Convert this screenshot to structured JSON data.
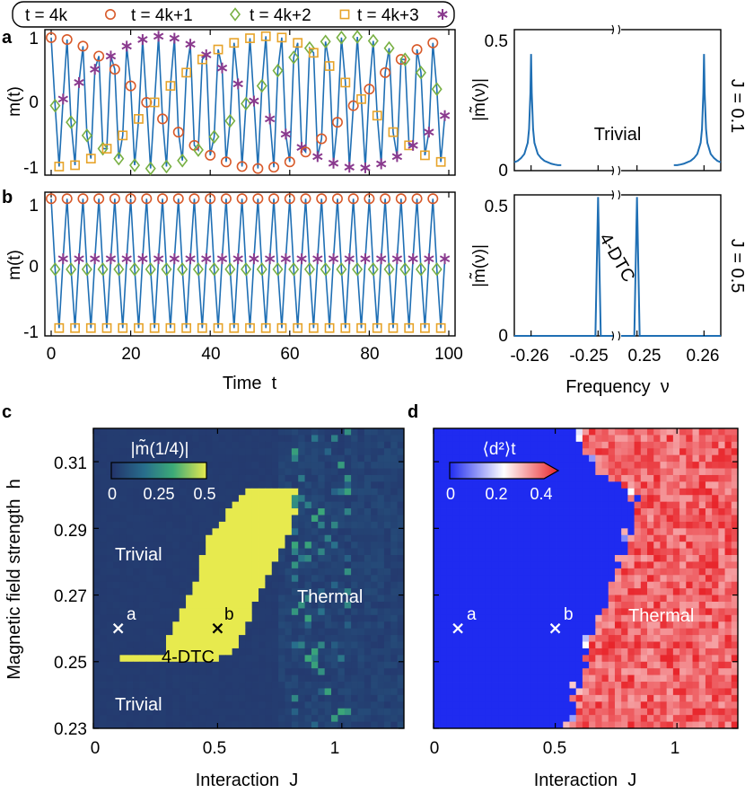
{
  "panel_letters": [
    "a",
    "b",
    "c",
    "d"
  ],
  "colors": {
    "line": "#1f6fb4",
    "circle": "#d85a2a",
    "diamond": "#78b043",
    "square": "#e7a42a",
    "star": "#8a3a8e",
    "phase_bg": "#23336b",
    "phase_hi": "#e7ea4e",
    "d2_low": "#1f2bf0",
    "d2_high": "#e8242a"
  },
  "chart_data": [
    {
      "id": "a-time",
      "type": "line",
      "xlabel": "",
      "ylabel": "m(t)",
      "xlim": [
        0,
        100
      ],
      "ylim": [
        -1.1,
        1.1
      ],
      "xticks": [
        "0",
        "20",
        "40",
        "60",
        "80",
        "100"
      ],
      "yticks": [
        "1",
        "0",
        "-1"
      ],
      "legend": [
        "t = 4k",
        "t = 4k+1",
        "t = 4k+2",
        "t = 4k+3"
      ],
      "series": [
        {
          "name": "t = 4k",
          "x": [
            0,
            4,
            8,
            12,
            16,
            20,
            24,
            28,
            32,
            36,
            40,
            44,
            48,
            52,
            56,
            60,
            64,
            68,
            72,
            76,
            80,
            84,
            88,
            92,
            96
          ],
          "values": [
            0.98,
            0.95,
            0.85,
            0.7,
            0.5,
            0.25,
            0.0,
            -0.25,
            -0.45,
            -0.65,
            -0.8,
            -0.9,
            -0.97,
            -1.0,
            -0.98,
            -0.9,
            -0.75,
            -0.55,
            -0.3,
            -0.05,
            0.2,
            0.45,
            0.65,
            0.8,
            0.9
          ]
        },
        {
          "name": "t = 4k+1",
          "x": [
            1,
            5,
            9,
            13,
            17,
            21,
            25,
            29,
            33,
            37,
            41,
            45,
            49,
            53,
            57,
            61,
            65,
            69,
            73,
            77,
            81,
            85,
            89,
            93,
            97
          ],
          "values": [
            -0.05,
            -0.3,
            -0.5,
            -0.7,
            -0.85,
            -0.95,
            -1.0,
            -0.97,
            -0.88,
            -0.72,
            -0.52,
            -0.28,
            -0.02,
            0.25,
            0.48,
            0.68,
            0.82,
            0.92,
            0.98,
            0.99,
            0.93,
            0.82,
            0.65,
            0.45,
            0.2
          ]
        },
        {
          "name": "t = 4k+2",
          "x": [
            2,
            6,
            10,
            14,
            18,
            22,
            26,
            30,
            34,
            38,
            42,
            46,
            50,
            54,
            58,
            62,
            66,
            70,
            74,
            78,
            82,
            86,
            90,
            94,
            98
          ],
          "values": [
            -0.97,
            -0.95,
            -0.85,
            -0.7,
            -0.5,
            -0.25,
            0.0,
            0.25,
            0.45,
            0.65,
            0.8,
            0.9,
            0.97,
            1.0,
            0.98,
            0.9,
            0.75,
            0.55,
            0.3,
            0.05,
            -0.2,
            -0.45,
            -0.65,
            -0.8,
            -0.9
          ]
        },
        {
          "name": "t = 4k+3",
          "x": [
            3,
            7,
            11,
            15,
            19,
            23,
            27,
            31,
            35,
            39,
            43,
            47,
            51,
            55,
            59,
            63,
            67,
            71,
            75,
            79,
            83,
            87,
            91,
            95,
            99
          ],
          "values": [
            0.05,
            0.3,
            0.5,
            0.7,
            0.85,
            0.95,
            1.0,
            0.97,
            0.88,
            0.72,
            0.52,
            0.28,
            0.02,
            -0.25,
            -0.48,
            -0.68,
            -0.82,
            -0.92,
            -0.98,
            -0.99,
            -0.93,
            -0.82,
            -0.65,
            -0.45,
            -0.2
          ]
        }
      ]
    },
    {
      "id": "a-spectrum",
      "type": "line",
      "xlabel": "",
      "ylabel": "|m̃(ν)|",
      "ylim": [
        0,
        0.5
      ],
      "yticks": [
        "0.5",
        "0"
      ],
      "right_label": "J = 0.1",
      "annotation": "Trivial",
      "series": [
        {
          "x": [
            -0.2625,
            -0.262,
            -0.2615,
            -0.261,
            -0.2605,
            -0.2603,
            -0.2601,
            -0.26,
            -0.2599,
            -0.2597,
            -0.2595,
            -0.259,
            -0.2585,
            -0.258,
            -0.2575,
            -0.257,
            -0.2565,
            -0.256,
            -0.2555
          ],
          "values": [
            0.03,
            0.035,
            0.045,
            0.06,
            0.1,
            0.15,
            0.28,
            0.42,
            0.28,
            0.15,
            0.1,
            0.06,
            0.045,
            0.035,
            0.03,
            0.025,
            0.022,
            0.02,
            0.02
          ]
        },
        {
          "x": [
            0.2555,
            0.256,
            0.2565,
            0.257,
            0.2575,
            0.258,
            0.2585,
            0.259,
            0.2595,
            0.2597,
            0.2599,
            0.26,
            0.2601,
            0.2603,
            0.2605,
            0.261,
            0.2615,
            0.262,
            0.2625
          ],
          "values": [
            0.02,
            0.02,
            0.022,
            0.025,
            0.03,
            0.035,
            0.045,
            0.06,
            0.1,
            0.15,
            0.28,
            0.42,
            0.28,
            0.15,
            0.1,
            0.06,
            0.045,
            0.035,
            0.03
          ]
        }
      ]
    },
    {
      "id": "b-time",
      "type": "line",
      "xlabel": "Time  t",
      "ylabel": "m(t)",
      "xlim": [
        0,
        100
      ],
      "ylim": [
        -1.1,
        1.1
      ],
      "xticks": [
        "0",
        "20",
        "40",
        "60",
        "80",
        "100"
      ],
      "yticks": [
        "1",
        "0",
        "-1"
      ],
      "series": [
        {
          "name": "t = 4k",
          "value": 1.0
        },
        {
          "name": "t = 4k+1",
          "value": -0.08
        },
        {
          "name": "t = 4k+2",
          "value": -0.98
        },
        {
          "name": "t = 4k+3",
          "value": 0.08
        }
      ]
    },
    {
      "id": "b-spectrum",
      "type": "line",
      "xlabel": "Frequency  ν",
      "ylabel": "|m̃(ν)|",
      "ylim": [
        0,
        0.5
      ],
      "xticks": [
        "-0.26",
        "-0.25",
        "0.25",
        "0.26"
      ],
      "yticks": [
        "0.5",
        "0"
      ],
      "right_label": "J = 0.5",
      "annotation": "4-DTC",
      "series": [
        {
          "x": [
            -0.2625,
            -0.2504,
            -0.2502,
            -0.25,
            -0.2498,
            -0.2496,
            -0.2475
          ],
          "values": [
            0,
            0,
            0.25,
            0.5,
            0.25,
            0,
            0
          ]
        },
        {
          "x": [
            0.2475,
            0.2496,
            0.2498,
            0.25,
            0.2502,
            0.2504,
            0.2625
          ],
          "values": [
            0,
            0,
            0.25,
            0.5,
            0.25,
            0,
            0
          ]
        }
      ]
    },
    {
      "id": "c-phase",
      "type": "heatmap",
      "xlabel": "Interaction  J",
      "ylabel": "Magnetic field strength  h",
      "xlim": [
        0,
        1.25
      ],
      "ylim": [
        0.23,
        0.32
      ],
      "xticks": [
        "0",
        "0.5",
        "1"
      ],
      "yticks": [
        "0.31",
        "0.29",
        "0.27",
        "0.25",
        "0.23"
      ],
      "colorbar": {
        "label": "|m̃(1/4)|",
        "ticks": [
          "0",
          "0.25",
          "0.5"
        ],
        "range": [
          0,
          0.5
        ]
      },
      "regions": [
        "Trivial",
        "Thermal",
        "4-DTC",
        "Trivial"
      ],
      "markers": [
        {
          "label": "a",
          "J": 0.1,
          "h": 0.26
        },
        {
          "label": "b",
          "J": 0.5,
          "h": 0.26
        }
      ],
      "dtc_boundary": {
        "h": [
          0.2505,
          0.252,
          0.255,
          0.258,
          0.261,
          0.264,
          0.267,
          0.27,
          0.273,
          0.276,
          0.279,
          0.282,
          0.285,
          0.288,
          0.291,
          0.294,
          0.297,
          0.3,
          0.302
        ],
        "J_low": [
          0.0,
          0.28,
          0.29,
          0.31,
          0.33,
          0.35,
          0.37,
          0.39,
          0.41,
          0.42,
          0.43,
          0.44,
          0.45,
          0.47,
          0.5,
          0.53,
          0.56,
          0.6,
          0.64
        ],
        "J_high": [
          0.5,
          0.55,
          0.58,
          0.6,
          0.62,
          0.63,
          0.65,
          0.67,
          0.69,
          0.7,
          0.72,
          0.74,
          0.76,
          0.78,
          0.8,
          0.81,
          0.82,
          0.83,
          0.83
        ]
      }
    },
    {
      "id": "d-thermal",
      "type": "heatmap",
      "xlabel": "Interaction  J",
      "ylabel": "",
      "xlim": [
        0,
        1.25
      ],
      "ylim": [
        0.23,
        0.32
      ],
      "xticks": [
        "0",
        "0.5",
        "1"
      ],
      "colorbar": {
        "label": "⟨d²⟩t",
        "ticks": [
          "0",
          "0.2",
          "0.4"
        ],
        "range": [
          0,
          0.45
        ]
      },
      "regions": [
        "Thermal"
      ],
      "markers": [
        {
          "label": "a",
          "J": 0.1,
          "h": 0.26
        },
        {
          "label": "b",
          "J": 0.5,
          "h": 0.26
        }
      ],
      "thermal_boundary": {
        "h": [
          0.23,
          0.24,
          0.25,
          0.26,
          0.27,
          0.28,
          0.29,
          0.3,
          0.305,
          0.31,
          0.315,
          0.32
        ],
        "J": [
          0.58,
          0.6,
          0.63,
          0.67,
          0.72,
          0.77,
          0.82,
          0.85,
          0.72,
          0.66,
          0.62,
          0.62
        ]
      }
    }
  ]
}
